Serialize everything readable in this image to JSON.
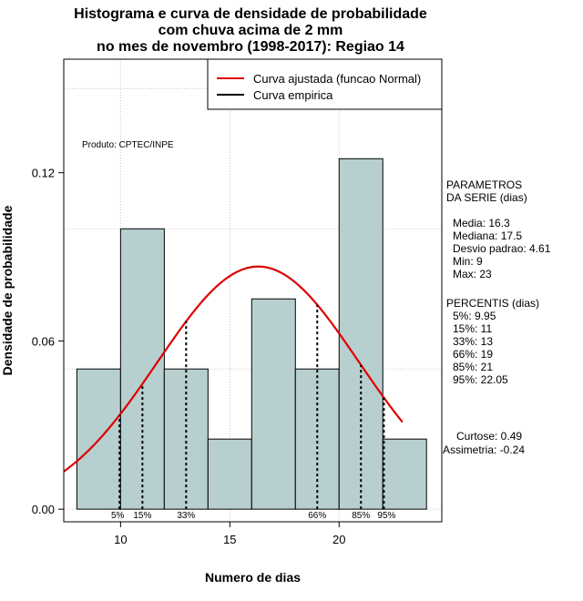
{
  "chart_data": {
    "type": "bar",
    "title_lines": [
      "Histograma e curva de densidade de probabilidade",
      "com chuva acima de 2 mm",
      "no mes de novembro (1998-2017): Regiao 14"
    ],
    "xlabel": "Numero de dias",
    "ylabel": "Densidade de probabilidade",
    "xlim": [
      7.4,
      24.7
    ],
    "ylim": [
      -0.0045,
      0.1605
    ],
    "x_ticks": [
      10,
      15,
      20
    ],
    "x_tick_labels": [
      "10",
      "15",
      "20"
    ],
    "y_ticks": [
      0.0,
      0.06,
      0.12
    ],
    "y_tick_labels": [
      "0.00",
      "0.06",
      "0.12"
    ],
    "grid": true,
    "bins": [
      {
        "start": 8,
        "end": 10,
        "density": 0.05
      },
      {
        "start": 10,
        "end": 12,
        "density": 0.1
      },
      {
        "start": 12,
        "end": 14,
        "density": 0.05
      },
      {
        "start": 14,
        "end": 16,
        "density": 0.025
      },
      {
        "start": 16,
        "end": 18,
        "density": 0.075
      },
      {
        "start": 18,
        "end": 20,
        "density": 0.05
      },
      {
        "start": 20,
        "end": 22,
        "density": 0.125
      },
      {
        "start": 22,
        "end": 24,
        "density": 0.025
      }
    ],
    "bar_color": "#b8cfcf",
    "curve_color": "#dd0000",
    "normal_fit": {
      "mean": 16.3,
      "sd": 4.61,
      "x_range": [
        7.4,
        22.9
      ]
    },
    "percentiles": [
      {
        "label": "5%",
        "value": 9.95
      },
      {
        "label": "15%",
        "value": 11
      },
      {
        "label": "33%",
        "value": 13
      },
      {
        "label": "66%",
        "value": 19
      },
      {
        "label": "85%",
        "value": 21
      },
      {
        "label": "95%",
        "value": 22.05
      }
    ],
    "legend": {
      "position": "top-right",
      "entries": [
        {
          "label": "Curva ajustada (funcao Normal)",
          "color": "#dd0000"
        },
        {
          "label": "Curva empirica",
          "color": "#000000"
        }
      ]
    },
    "annotation": "Produto: CPTEC/INPE",
    "parameters": {
      "heading_lines": [
        "PARAMETROS",
        "DA SERIE (dias)"
      ],
      "items": [
        "Media: 16.3",
        "Mediana: 17.5",
        "Desvio padrao: 4.61",
        "Min: 9",
        "Max: 23"
      ]
    },
    "percentile_panel": {
      "heading": "PERCENTIS (dias)",
      "items": [
        "5%: 9.95",
        "15%: 11",
        "33%: 13",
        "66%: 19",
        "85%: 21",
        "95%: 22.05"
      ]
    },
    "shape_stats": [
      "Curtose: 0.49",
      "Assimetria: -0.24"
    ]
  }
}
